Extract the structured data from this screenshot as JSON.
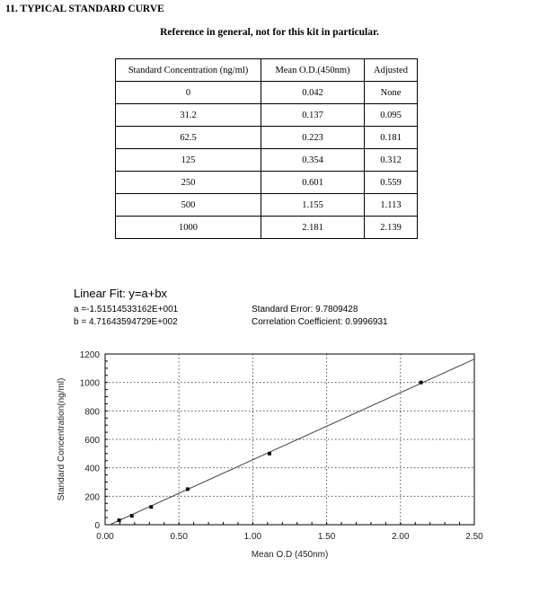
{
  "heading": "11. TYPICAL STANDARD CURVE",
  "subheading": "Reference in general, not for this kit in particular.",
  "table": {
    "headers": [
      "Standard Concentration (ng/ml)",
      "Mean O.D.(450nm)",
      "Adjusted"
    ],
    "rows": [
      [
        "0",
        "0.042",
        "None"
      ],
      [
        "31.2",
        "0.137",
        "0.095"
      ],
      [
        "62.5",
        "0.223",
        "0.181"
      ],
      [
        "125",
        "0.354",
        "0.312"
      ],
      [
        "250",
        "0.601",
        "0.559"
      ],
      [
        "500",
        "1.155",
        "1.113"
      ],
      [
        "1000",
        "2.181",
        "2.139"
      ]
    ]
  },
  "fit": {
    "title": "Linear Fit: y=a+bx",
    "a": "a =-1.51514533162E+001",
    "b": "b = 4.71643594729E+002",
    "std_error": "Standard Error: 9.7809428",
    "corr": "Correlation Coefficient: 0.9996931"
  },
  "chart_data": {
    "type": "scatter",
    "xlabel": "Mean O.D (450nm)",
    "ylabel": "Standard Concentration(ng/ml)",
    "xlim": [
      0,
      2.5
    ],
    "ylim": [
      0,
      1200
    ],
    "xticks": [
      "0.00",
      "0.50",
      "1.00",
      "1.50",
      "2.00",
      "2.50"
    ],
    "yticks": [
      "0",
      "200",
      "400",
      "600",
      "800",
      "1000",
      "1200"
    ],
    "grid": true,
    "points": {
      "x": [
        0.095,
        0.181,
        0.312,
        0.559,
        1.113,
        2.139
      ],
      "y": [
        31.2,
        62.5,
        125,
        250,
        500,
        1000
      ]
    },
    "fit_line": {
      "a": -15.1514533162,
      "b": 471.643594729
    },
    "colors": {
      "line": "#444444",
      "grid": "#555555"
    }
  }
}
